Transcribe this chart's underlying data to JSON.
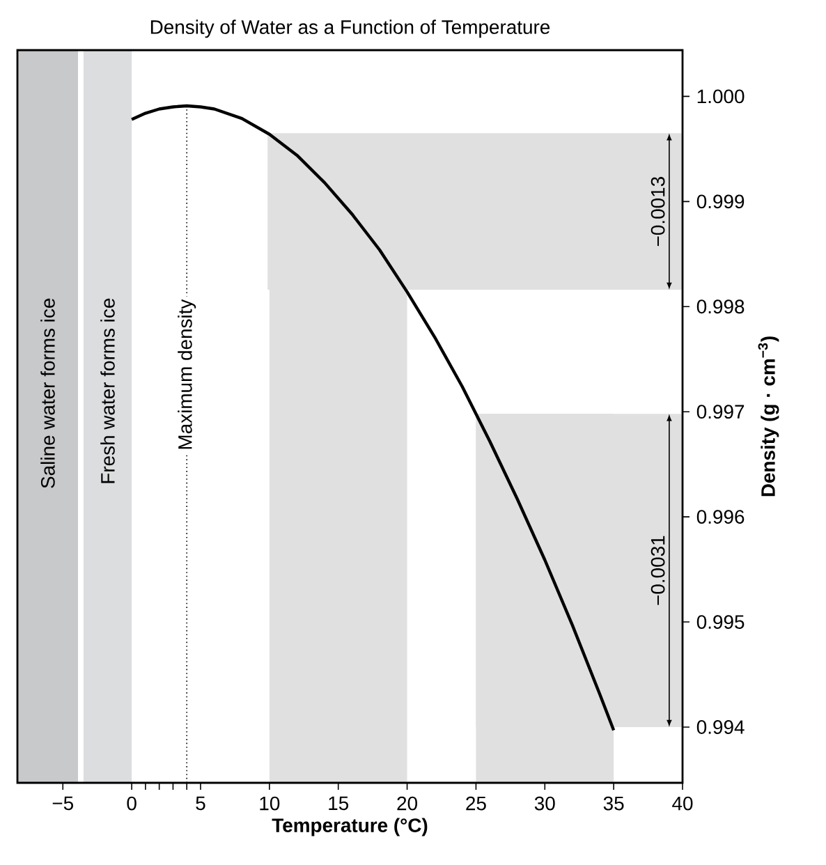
{
  "chart_data": {
    "type": "line",
    "title": "Density of Water as a Function of Temperature",
    "xlabel": "Temperature (°C)",
    "ylabel": "Density (g · cm$^{−3}$)",
    "xlim": [
      -8.3,
      40
    ],
    "ylim": [
      0.99347,
      1.00044
    ],
    "xticks": [
      {
        "value": -5,
        "label": "−5"
      },
      0,
      {
        "value": 1,
        "label": null
      },
      {
        "value": 2,
        "label": null
      },
      {
        "value": 3,
        "label": null
      },
      {
        "value": 4,
        "label": null
      },
      5,
      10,
      15,
      20,
      25,
      30,
      35,
      40
    ],
    "yticks": [
      0.994,
      0.995,
      0.996,
      0.997,
      0.998,
      0.999,
      {
        "value": 1,
        "label": "1.000"
      }
    ],
    "marker": "none",
    "line_style": "solid",
    "series": [
      {
        "color": "#000000",
        "x": [
          0,
          1,
          2,
          3,
          4,
          5,
          6,
          8,
          10,
          12,
          14,
          16,
          18,
          20,
          22,
          24,
          26,
          28,
          30,
          32,
          34,
          35
        ],
        "values": [
          0.99978,
          0.99984,
          0.99988,
          0.9999,
          0.99991,
          0.9999,
          0.99988,
          0.99979,
          0.99964,
          0.99944,
          0.99918,
          0.99888,
          0.99854,
          0.99814,
          0.99771,
          0.99724,
          0.99672,
          0.99617,
          0.99559,
          0.99497,
          0.99431,
          0.99397
        ]
      }
    ],
    "bands": [
      {
        "axis": "x",
        "from": -8.3,
        "to": -3.9,
        "label": "Saline water forms ice",
        "color": "#c8c9cb"
      },
      {
        "axis": "x",
        "from": -3.5,
        "to": 0,
        "label": "Fresh water forms ice",
        "color": "#dcdddf"
      },
      {
        "axis": "x",
        "from": 10,
        "to": 20,
        "color": "#e0e0e0"
      },
      {
        "axis": "y",
        "from": 0.99816,
        "to": 0.99965,
        "color": "#e0e0e0"
      },
      {
        "axis": "x",
        "from": 25,
        "to": 35,
        "color": "#e0e0e0"
      },
      {
        "axis": "y",
        "from": 0.994,
        "to": 0.99698,
        "color": "#e0e0e0"
      }
    ],
    "ref_lines": [
      {
        "axis": "x",
        "value": 4,
        "label": "Maximum density",
        "color": "#000000",
        "line_style": "dotted"
      }
    ],
    "annotations": [
      "−0.0013",
      "−0.0031"
    ]
  }
}
